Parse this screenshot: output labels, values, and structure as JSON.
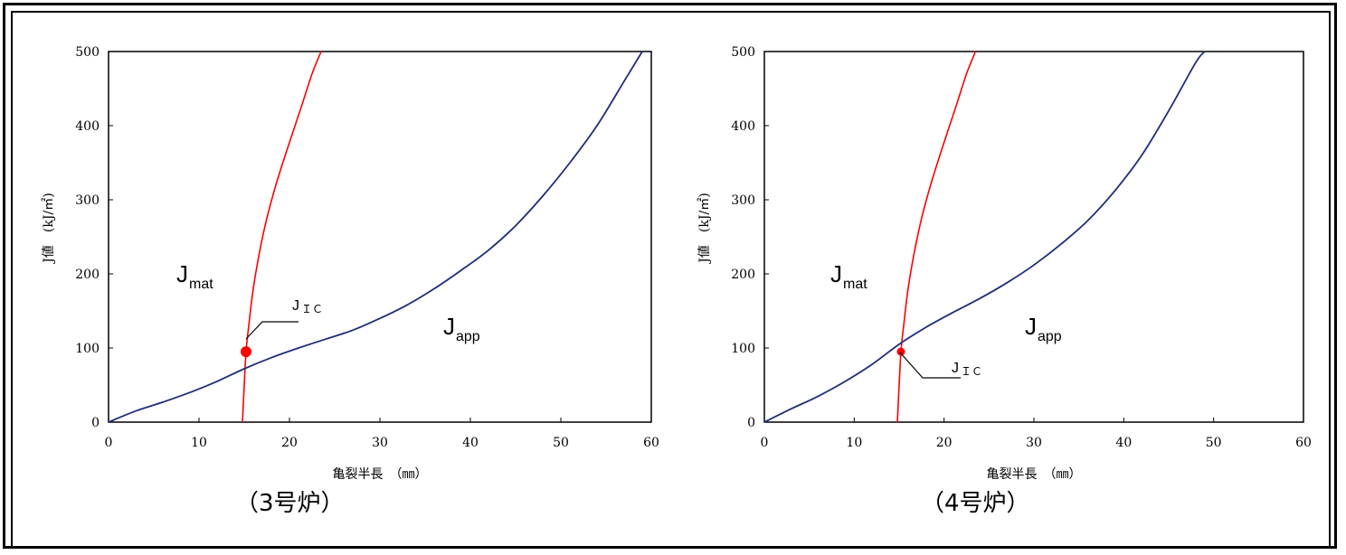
{
  "chart_data": [
    {
      "type": "line",
      "caption": "（3号炉）",
      "xlabel": "亀裂半長　（㎜）",
      "ylabel": "J値　(kJ/㎡)",
      "xlim": [
        0,
        60
      ],
      "ylim": [
        0,
        500
      ],
      "x_ticks": [
        "0",
        "10",
        "20",
        "30",
        "40",
        "50",
        "60"
      ],
      "y_ticks": [
        "0",
        "100",
        "200",
        "300",
        "400",
        "500"
      ],
      "grid": false,
      "series": [
        {
          "name": "Jmat",
          "color": "#ff0000",
          "x": [
            14.8,
            14.9,
            15.0,
            15.2,
            15.5,
            16.0,
            16.7,
            17.5,
            18.5,
            19.8,
            21.3,
            22.5,
            23.5
          ],
          "y": [
            0,
            25,
            50,
            95,
            130,
            180,
            230,
            275,
            320,
            370,
            425,
            470,
            500
          ]
        },
        {
          "name": "Japp",
          "color": "#1f2d7a",
          "x": [
            0,
            3,
            6,
            9,
            12,
            15,
            18,
            21,
            24,
            27,
            30,
            33,
            36,
            39,
            42,
            45,
            48,
            51,
            54,
            57,
            59
          ],
          "y": [
            0,
            15,
            27,
            40,
            55,
            72,
            87,
            100,
            112,
            124,
            140,
            158,
            180,
            205,
            232,
            265,
            305,
            350,
            400,
            460,
            500
          ]
        }
      ],
      "points": [
        {
          "name": "JIC",
          "x": 15.2,
          "y": 95,
          "color": "#ff0000"
        }
      ],
      "annotations": {
        "jmat_base": "J",
        "jmat_sub": "mat",
        "japp_base": "J",
        "japp_sub": "app",
        "jic_base": "J",
        "jic_sub": "ＩＣ"
      }
    },
    {
      "type": "line",
      "caption": "（4号炉）",
      "xlabel": "亀裂半長　（㎜）",
      "ylabel": "J値　(kJ/㎡)",
      "xlim": [
        0,
        60
      ],
      "ylim": [
        0,
        500
      ],
      "x_ticks": [
        "0",
        "10",
        "20",
        "30",
        "40",
        "50",
        "60"
      ],
      "y_ticks": [
        "0",
        "100",
        "200",
        "300",
        "400",
        "500"
      ],
      "grid": false,
      "series": [
        {
          "name": "Jmat",
          "color": "#ff0000",
          "x": [
            14.8,
            14.9,
            15.0,
            15.2,
            15.5,
            16.0,
            16.7,
            17.5,
            18.5,
            19.8,
            21.3,
            22.5,
            23.5
          ],
          "y": [
            0,
            25,
            50,
            95,
            130,
            180,
            230,
            275,
            320,
            370,
            425,
            470,
            500
          ]
        },
        {
          "name": "Japp",
          "color": "#1f2d7a",
          "x": [
            0,
            3,
            6,
            9,
            12,
            15,
            18,
            21,
            24,
            27,
            30,
            33,
            36,
            39,
            42,
            45,
            48,
            49
          ],
          "y": [
            0,
            18,
            35,
            55,
            78,
            105,
            128,
            148,
            167,
            188,
            212,
            240,
            272,
            312,
            360,
            420,
            485,
            500
          ]
        }
      ],
      "points": [
        {
          "name": "JIC",
          "x": 15.2,
          "y": 95,
          "color": "#ff0000"
        }
      ],
      "annotations": {
        "jmat_base": "J",
        "jmat_sub": "mat",
        "japp_base": "J",
        "japp_sub": "app",
        "jic_base": "J",
        "jic_sub": "ＩＣ"
      }
    }
  ]
}
